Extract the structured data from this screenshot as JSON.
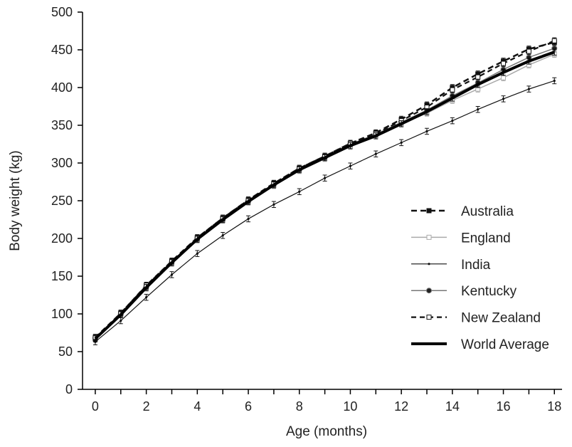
{
  "chart_data": {
    "type": "line",
    "title": "",
    "xlabel": "Age (months)",
    "ylabel": "Body weight (kg)",
    "xlim": [
      -0.5,
      18.3
    ],
    "ylim": [
      0,
      500
    ],
    "x_ticks": [
      0,
      2,
      4,
      6,
      8,
      10,
      12,
      14,
      16,
      18
    ],
    "x_tick_labels": [
      "0",
      "2",
      "4",
      "6",
      "8",
      "10",
      "12",
      "14",
      "16",
      "18"
    ],
    "y_ticks": [
      0,
      50,
      100,
      150,
      200,
      250,
      300,
      350,
      400,
      450,
      500
    ],
    "y_tick_labels": [
      "0",
      "50",
      "100",
      "150",
      "200",
      "250",
      "300",
      "350",
      "400",
      "450",
      "500"
    ],
    "grid": false,
    "legend_position": "right",
    "x": [
      0,
      1,
      2,
      3,
      4,
      5,
      6,
      7,
      8,
      9,
      10,
      11,
      12,
      13,
      14,
      15,
      16,
      17,
      18
    ],
    "series": [
      {
        "name": "Australia",
        "color": "#111111",
        "style": "dashed-square-filled",
        "values": [
          67,
          101,
          137,
          170,
          201,
          227,
          251,
          273,
          293,
          309,
          326,
          340,
          358,
          377,
          400,
          418,
          435,
          451,
          460
        ]
      },
      {
        "name": "England",
        "color": "#aaaaaa",
        "style": "solid-square-open",
        "values": [
          68,
          99,
          134,
          167,
          198,
          224,
          248,
          270,
          290,
          306,
          322,
          336,
          352,
          366,
          383,
          398,
          413,
          430,
          444
        ]
      },
      {
        "name": "India",
        "color": "#111111",
        "style": "solid-thin-dot",
        "values": [
          63,
          91,
          122,
          152,
          180,
          204,
          226,
          245,
          262,
          280,
          296,
          312,
          327,
          342,
          356,
          371,
          385,
          398,
          409
        ]
      },
      {
        "name": "Kentucky",
        "color": "#777777",
        "style": "solid-circle-filled",
        "values": [
          68,
          100,
          136,
          169,
          200,
          226,
          250,
          272,
          292,
          308,
          325,
          338,
          354,
          370,
          389,
          406,
          424,
          440,
          452
        ]
      },
      {
        "name": "New Zealand",
        "color": "#111111",
        "style": "dashed-square-open",
        "values": [
          69,
          101,
          138,
          170,
          201,
          227,
          251,
          273,
          293,
          309,
          326,
          339,
          356,
          374,
          397,
          414,
          432,
          448,
          462
        ]
      },
      {
        "name": "World Average",
        "color": "#000000",
        "style": "solid-thick",
        "values": [
          67,
          99,
          135,
          168,
          199,
          225,
          249,
          271,
          291,
          307,
          323,
          336,
          352,
          368,
          386,
          404,
          420,
          435,
          447
        ]
      }
    ],
    "error_bar_half_width": 4
  }
}
